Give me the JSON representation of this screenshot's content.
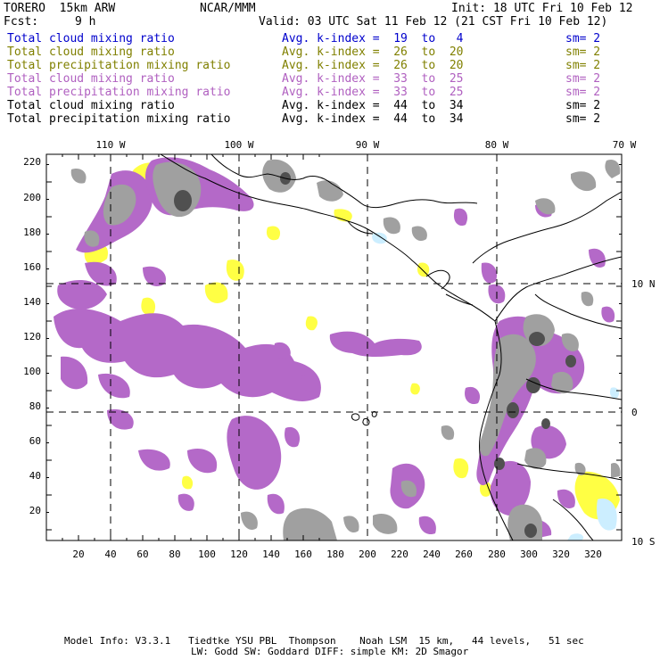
{
  "header": {
    "model": "TORERO  15km ARW",
    "center": "NCAR/MMM",
    "init": "Init: 18 UTC Fri 10 Feb 12",
    "fcst_label": "Fcst:",
    "fcst_value": "9 h",
    "valid": "Valid: 03 UTC Sat 11 Feb 12 (21 CST Fri 10 Feb 12)"
  },
  "legend": [
    {
      "field": "Total cloud mixing ratio",
      "kindex": "Avg. k-index =  19  to   4",
      "sm": "sm= 2",
      "color": "#0000cc"
    },
    {
      "field": "Total cloud mixing ratio",
      "kindex": "Avg. k-index =  26  to  20",
      "sm": "sm= 2",
      "color": "#808000"
    },
    {
      "field": "Total precipitation mixing ratio",
      "kindex": "Avg. k-index =  26  to  20",
      "sm": "sm= 2",
      "color": "#808000"
    },
    {
      "field": "Total cloud mixing ratio",
      "kindex": "Avg. k-index =  33  to  25",
      "sm": "sm= 2",
      "color": "#b060c0"
    },
    {
      "field": "Total precipitation mixing ratio",
      "kindex": "Avg. k-index =  33  to  25",
      "sm": "sm= 2",
      "color": "#b060c0"
    },
    {
      "field": "Total cloud mixing ratio",
      "kindex": "Avg. k-index =  44  to  34",
      "sm": "sm= 2",
      "color": "#000000"
    },
    {
      "field": "Total precipitation mixing ratio",
      "kindex": "Avg. k-index =  44  to  34",
      "sm": "sm= 2",
      "color": "#000000"
    }
  ],
  "map": {
    "lon_labels": [
      "110 W",
      "100 W",
      "90 W",
      "80 W",
      "70 W"
    ],
    "lat_labels": [
      "10 N",
      "0",
      "10 S"
    ],
    "x_ticks": [
      "20",
      "40",
      "60",
      "80",
      "100",
      "120",
      "140",
      "160",
      "180",
      "200",
      "220",
      "240",
      "260",
      "280",
      "300",
      "320"
    ],
    "y_ticks": [
      "220",
      "200",
      "180",
      "160",
      "140",
      "120",
      "100",
      "80",
      "60",
      "40",
      "20"
    ],
    "colors": {
      "purple": "#b469c8",
      "gray": "#a0a0a0",
      "dark_gray": "#505050",
      "yellow": "#ffff44",
      "light_blue": "#cceeff"
    }
  },
  "footer": {
    "line1": "Model Info: V3.3.1   Tiedtke YSU PBL  Thompson    Noah LSM  15 km,   44 levels,   51 sec",
    "line2": "LW: Godd SW: Goddard DIFF: simple KM: 2D Smagor"
  }
}
